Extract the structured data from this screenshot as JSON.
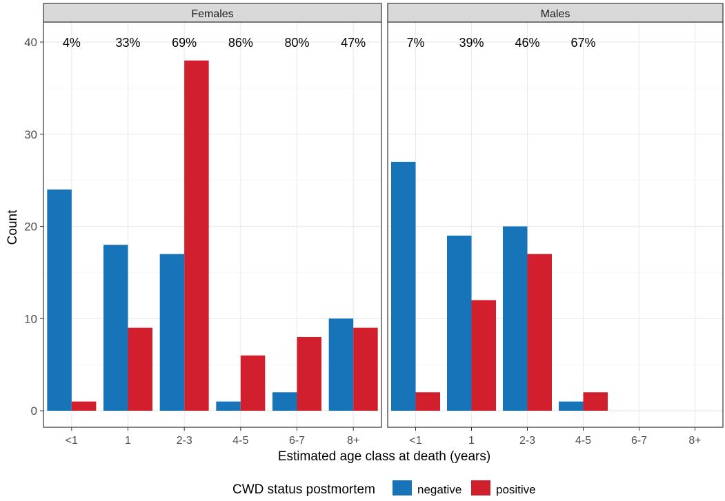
{
  "chart_data": {
    "type": "bar",
    "facet_by": "sex",
    "categories": [
      "<1",
      "1",
      "2-3",
      "4-5",
      "6-7",
      "8+"
    ],
    "xlabel": "Estimated age class at death (years)",
    "ylabel": "Count",
    "ylim": [
      0,
      43
    ],
    "yticks": [
      "0",
      "10",
      "20",
      "30",
      "40"
    ],
    "grid": true,
    "legend": {
      "title": "CWD status postmortem",
      "position": "bottom",
      "entries": [
        "negative",
        "positive"
      ]
    },
    "colors": {
      "negative": "#1874b8",
      "positive": "#d21f2e"
    },
    "panels": [
      {
        "title": "Females",
        "series": [
          {
            "name": "negative",
            "values": [
              24,
              18,
              17,
              1,
              2,
              10
            ]
          },
          {
            "name": "positive",
            "values": [
              1,
              9,
              38,
              6,
              8,
              9
            ]
          }
        ],
        "annotations": [
          "4%",
          "33%",
          "69%",
          "86%",
          "80%",
          "47%"
        ]
      },
      {
        "title": "Males",
        "series": [
          {
            "name": "negative",
            "values": [
              27,
              19,
              20,
              1,
              0,
              0
            ]
          },
          {
            "name": "positive",
            "values": [
              2,
              12,
              17,
              2,
              0,
              0
            ]
          }
        ],
        "annotations": [
          "7%",
          "39%",
          "46%",
          "67%",
          "",
          ""
        ]
      }
    ]
  }
}
